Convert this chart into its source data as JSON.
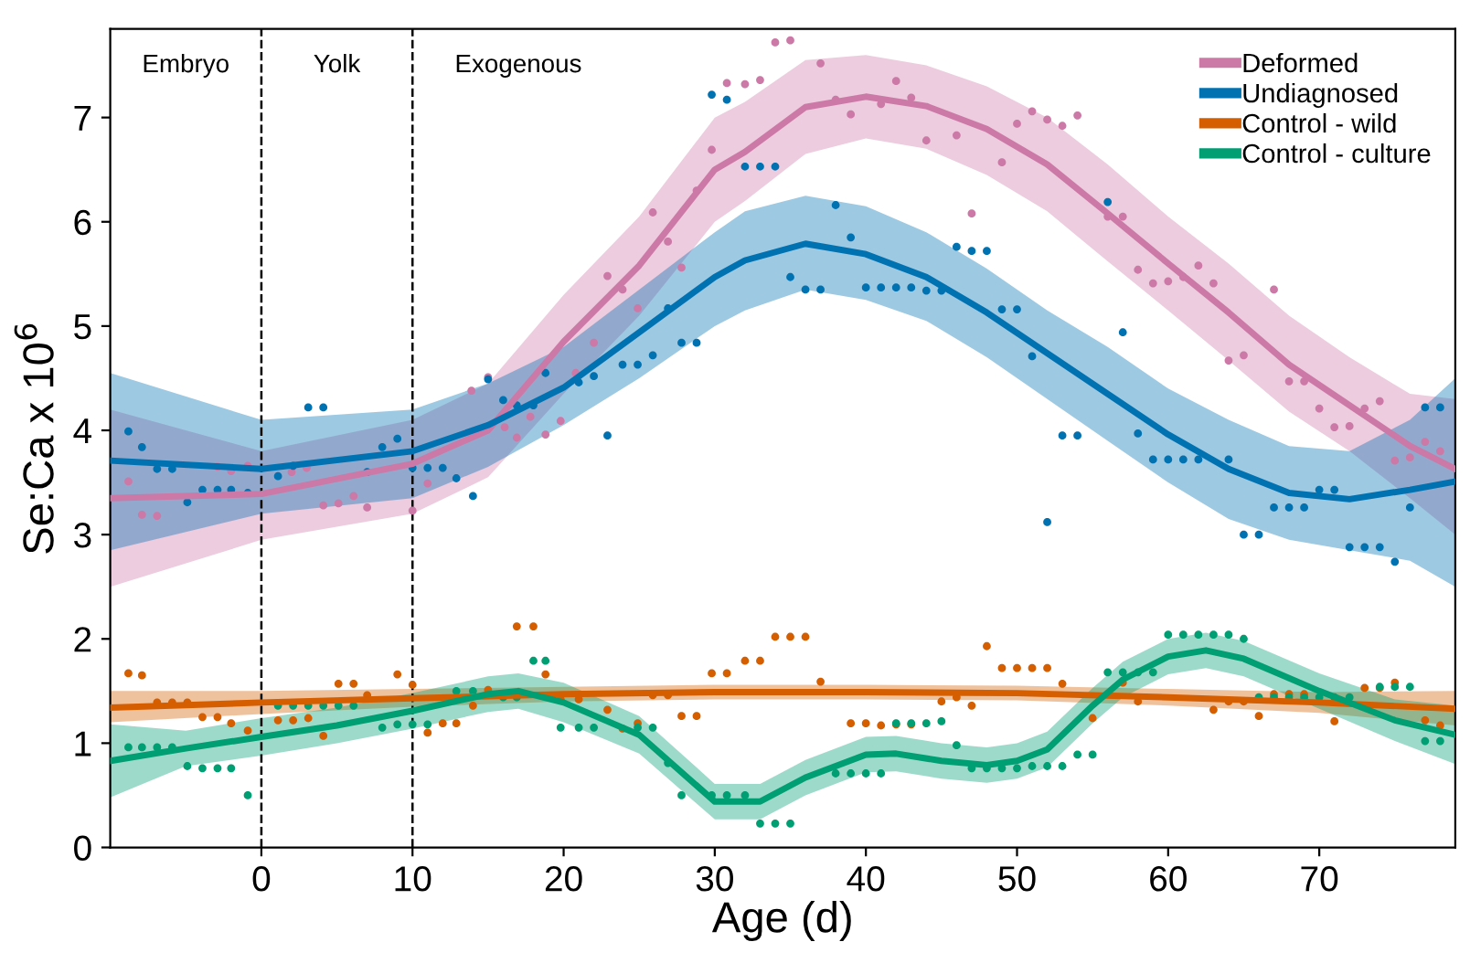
{
  "chart_data": {
    "type": "line",
    "xlabel": "Age (d)",
    "ylabel": "Se:Ca x 10$^{6}$",
    "xlim": [
      -10,
      79
    ],
    "ylim": [
      0,
      7.85
    ],
    "xticks": [
      0,
      10,
      20,
      30,
      40,
      50,
      60,
      70
    ],
    "yticks": [
      0,
      1,
      2,
      3,
      4,
      5,
      6,
      7
    ],
    "grid": false,
    "legend": "top right",
    "ref_lines": [
      {
        "axis": "x",
        "value": 0,
        "line_style": "dashed",
        "color": "#000000"
      },
      {
        "axis": "x",
        "value": 10,
        "line_style": "dashed",
        "color": "#000000"
      }
    ],
    "annotations": [
      "Embryo",
      "Yolk",
      "Exogenous"
    ],
    "series": [
      {
        "type": "scatter",
        "marker": "circle",
        "color": "#cc79a7",
        "x": [
          -8.8,
          -7.9,
          -6.9,
          -2.9,
          -2,
          -0.9,
          2,
          3,
          4.1,
          5.1,
          6.1,
          7,
          10,
          11,
          13.9,
          15,
          16.1,
          16.9,
          17.8,
          18.8,
          19.8,
          20.8,
          22,
          22.9,
          23.9,
          24.9,
          25.9,
          26.9,
          27.8,
          28.8,
          29.8,
          30.8,
          32,
          33,
          34,
          35,
          37,
          38,
          39,
          41,
          42,
          43,
          44,
          46,
          47,
          49,
          50,
          51,
          52,
          53,
          54,
          56,
          57,
          58,
          59,
          60,
          61,
          62,
          63,
          64,
          65,
          67,
          68,
          69,
          70,
          71,
          72,
          73,
          74,
          75,
          76,
          77,
          78
        ],
        "values": [
          3.51,
          3.19,
          3.18,
          3.65,
          3.61,
          3.66,
          3.6,
          3.64,
          3.28,
          3.3,
          3.37,
          3.26,
          3.23,
          3.49,
          4.38,
          4.51,
          4.03,
          3.93,
          4.13,
          3.96,
          4.09,
          4.55,
          4.84,
          5.48,
          5.35,
          5.17,
          6.09,
          5.81,
          5.56,
          6.3,
          6.69,
          7.33,
          7.32,
          7.36,
          7.72,
          7.74,
          7.52,
          7.17,
          7.03,
          7.13,
          7.35,
          7.19,
          6.78,
          6.83,
          6.08,
          6.57,
          6.94,
          7.06,
          6.98,
          6.92,
          7.02,
          6.05,
          6.05,
          5.54,
          5.41,
          5.43,
          5.47,
          5.58,
          5.41,
          4.67,
          4.72,
          5.35,
          4.47,
          4.47,
          4.21,
          4.03,
          4.04,
          4.21,
          4.28,
          3.71,
          3.74,
          3.89,
          3.8
        ]
      },
      {
        "type": "scatter",
        "marker": "circle",
        "color": "#0072b2",
        "x": [
          -8.8,
          -7.9,
          -6.9,
          -5.9,
          -4.9,
          -3.9,
          -2.9,
          -2,
          -0.9,
          1.1,
          2.1,
          3.1,
          4.1,
          7,
          8,
          9,
          10,
          11,
          12,
          12.9,
          14,
          15,
          16,
          16.9,
          18,
          18.8,
          21,
          22,
          22.9,
          23.9,
          24.9,
          25.9,
          26.9,
          27.8,
          28.8,
          29.8,
          30.8,
          32,
          33,
          34,
          35,
          36,
          37,
          38,
          39,
          40,
          41,
          42,
          43,
          44,
          45,
          46,
          47,
          48,
          49,
          50,
          51,
          52,
          53,
          54,
          56,
          57,
          58,
          59,
          60,
          61,
          62,
          64,
          65,
          66,
          67,
          68,
          69,
          70,
          71,
          72,
          73,
          74,
          75,
          76,
          77,
          78
        ],
        "values": [
          3.99,
          3.84,
          3.63,
          3.63,
          3.31,
          3.43,
          3.43,
          3.43,
          3.4,
          3.56,
          3.66,
          4.22,
          4.22,
          3.6,
          3.84,
          3.92,
          3.64,
          3.64,
          3.64,
          3.54,
          3.37,
          4.49,
          4.29,
          4.24,
          4.24,
          4.55,
          4.46,
          4.52,
          3.95,
          4.63,
          4.63,
          4.72,
          5.17,
          4.84,
          4.84,
          7.22,
          7.17,
          6.53,
          6.53,
          6.53,
          5.47,
          5.35,
          5.35,
          6.16,
          5.85,
          5.37,
          5.37,
          5.37,
          5.37,
          5.34,
          5.34,
          5.76,
          5.72,
          5.72,
          5.16,
          5.16,
          4.71,
          3.12,
          3.95,
          3.95,
          6.19,
          4.94,
          3.97,
          3.72,
          3.72,
          3.72,
          3.72,
          3.72,
          3.0,
          3.0,
          3.26,
          3.26,
          3.26,
          3.43,
          3.43,
          2.88,
          2.88,
          2.88,
          2.74,
          3.26,
          4.22,
          4.22
        ]
      },
      {
        "type": "scatter",
        "marker": "circle",
        "color": "#d55e00",
        "x": [
          -8.8,
          -7.9,
          -6.9,
          -5.9,
          -4.9,
          -3.9,
          -2.9,
          -2,
          -0.9,
          1.1,
          2.1,
          3.1,
          4.1,
          5.1,
          6.1,
          7,
          9,
          10,
          11,
          12,
          12.9,
          14,
          15,
          16.9,
          18,
          18.8,
          19.8,
          21,
          22.9,
          23.9,
          24.9,
          25.9,
          26.9,
          27.8,
          28.8,
          29.8,
          30.8,
          32,
          33,
          34,
          35,
          36,
          37,
          39,
          40,
          41,
          42,
          43,
          45,
          46,
          47,
          48,
          49,
          50,
          51,
          52,
          53,
          55,
          57,
          58,
          63,
          64,
          65,
          66,
          67,
          68,
          69,
          71,
          73,
          74,
          75,
          77,
          78
        ],
        "values": [
          1.67,
          1.65,
          1.39,
          1.39,
          1.39,
          1.25,
          1.25,
          1.19,
          1.12,
          1.22,
          1.22,
          1.24,
          1.07,
          1.57,
          1.57,
          1.46,
          1.66,
          1.56,
          1.1,
          1.19,
          1.19,
          1.36,
          1.51,
          2.12,
          2.12,
          1.66,
          1.42,
          1.42,
          1.32,
          1.14,
          1.19,
          1.46,
          1.46,
          1.26,
          1.26,
          1.67,
          1.67,
          1.79,
          1.79,
          2.02,
          2.02,
          2.02,
          1.59,
          1.19,
          1.19,
          1.17,
          1.18,
          1.18,
          1.4,
          1.44,
          1.36,
          1.93,
          1.72,
          1.72,
          1.72,
          1.72,
          1.57,
          1.24,
          1.58,
          1.4,
          1.32,
          1.4,
          1.4,
          1.26,
          1.47,
          1.47,
          1.47,
          1.21,
          1.53,
          1.53,
          1.58,
          1.22,
          1.17
        ]
      },
      {
        "type": "scatter",
        "marker": "circle",
        "color": "#009e73",
        "x": [
          -8.8,
          -7.9,
          -6.9,
          -5.9,
          -4.9,
          -3.9,
          -2.9,
          -2,
          -0.9,
          1.1,
          2.1,
          3.1,
          4.1,
          5.1,
          6.1,
          8,
          9,
          10,
          11,
          12.9,
          14,
          16,
          16.9,
          18,
          18.8,
          19.8,
          21,
          22,
          24.9,
          25.9,
          26.9,
          27.8,
          29.8,
          30.8,
          32,
          33,
          34,
          35,
          38,
          39,
          40,
          41,
          42,
          43,
          44,
          45,
          46,
          47,
          48,
          49,
          50,
          51,
          52,
          53,
          54,
          55,
          56,
          57,
          58,
          59,
          60,
          61,
          62,
          63,
          64,
          65,
          66,
          67,
          68,
          69,
          70,
          71,
          72,
          74,
          75,
          76,
          77,
          78
        ],
        "values": [
          0.96,
          0.96,
          0.96,
          0.96,
          0.78,
          0.76,
          0.76,
          0.76,
          0.5,
          1.36,
          1.36,
          1.36,
          1.36,
          1.36,
          1.36,
          1.15,
          1.18,
          1.18,
          1.18,
          1.5,
          1.5,
          1.44,
          1.44,
          1.79,
          1.79,
          1.15,
          1.15,
          1.15,
          1.15,
          1.15,
          0.81,
          0.5,
          0.5,
          0.5,
          0.5,
          0.23,
          0.23,
          0.23,
          0.71,
          0.71,
          0.71,
          0.71,
          1.19,
          1.19,
          1.19,
          1.21,
          0.98,
          0.76,
          0.76,
          0.76,
          0.76,
          0.78,
          0.78,
          0.78,
          0.89,
          0.89,
          1.68,
          1.68,
          1.68,
          1.68,
          2.04,
          2.04,
          2.04,
          2.04,
          2.04,
          2.0,
          1.44,
          1.44,
          1.44,
          1.44,
          1.44,
          1.44,
          1.44,
          1.54,
          1.54,
          1.54,
          1.02,
          1.02
        ]
      },
      {
        "name": "Deformed",
        "color": "#cc79a7",
        "x": [
          -10,
          0,
          10,
          15,
          20,
          25,
          30,
          32,
          36,
          40,
          44,
          48,
          52,
          56,
          60,
          64,
          68,
          72,
          76,
          79
        ],
        "values": [
          3.35,
          3.39,
          3.68,
          4.0,
          4.85,
          5.58,
          6.5,
          6.67,
          7.1,
          7.2,
          7.11,
          6.89,
          6.55,
          6.08,
          5.6,
          5.13,
          4.63,
          4.24,
          3.85,
          3.63
        ],
        "lower": [
          2.5,
          2.95,
          3.2,
          3.55,
          4.35,
          5.1,
          6.0,
          6.2,
          6.65,
          6.8,
          6.7,
          6.45,
          6.1,
          5.62,
          5.15,
          4.67,
          4.18,
          3.8,
          3.35,
          3.0
        ],
        "upper": [
          4.2,
          3.8,
          4.1,
          4.45,
          5.3,
          6.05,
          7.0,
          7.15,
          7.55,
          7.6,
          7.5,
          7.3,
          7.0,
          6.55,
          6.05,
          5.6,
          5.1,
          4.7,
          4.35,
          4.3
        ]
      },
      {
        "name": "Undiagnosed",
        "color": "#0072b2",
        "x": [
          -10,
          0,
          10,
          15,
          20,
          25,
          30,
          32,
          36,
          40,
          44,
          48,
          52,
          56,
          60,
          64,
          68,
          72,
          76,
          79
        ],
        "values": [
          3.71,
          3.63,
          3.8,
          4.05,
          4.41,
          4.94,
          5.47,
          5.63,
          5.79,
          5.69,
          5.47,
          5.13,
          4.74,
          4.35,
          3.96,
          3.63,
          3.4,
          3.34,
          3.43,
          3.51
        ],
        "lower": [
          2.85,
          3.2,
          3.35,
          3.65,
          4.05,
          4.5,
          5.0,
          5.15,
          5.35,
          5.25,
          5.05,
          4.7,
          4.3,
          3.9,
          3.5,
          3.15,
          2.95,
          2.85,
          2.75,
          2.5
        ],
        "upper": [
          4.55,
          4.1,
          4.2,
          4.45,
          4.8,
          5.35,
          5.9,
          6.1,
          6.25,
          6.15,
          5.9,
          5.55,
          5.15,
          4.8,
          4.4,
          4.1,
          3.85,
          3.8,
          4.1,
          4.5
        ]
      },
      {
        "name": "Control - wild",
        "color": "#d55e00",
        "x": [
          -10,
          0,
          10,
          20,
          30,
          40,
          50,
          60,
          70,
          79
        ],
        "values": [
          1.34,
          1.39,
          1.43,
          1.47,
          1.49,
          1.49,
          1.48,
          1.44,
          1.39,
          1.33
        ],
        "lower": [
          1.2,
          1.28,
          1.35,
          1.4,
          1.42,
          1.42,
          1.41,
          1.36,
          1.29,
          1.17
        ],
        "upper": [
          1.5,
          1.5,
          1.52,
          1.54,
          1.56,
          1.56,
          1.55,
          1.52,
          1.49,
          1.5
        ]
      },
      {
        "name": "Control - culture",
        "color": "#009e73",
        "x": [
          -10,
          -5,
          0,
          5,
          10,
          15,
          17,
          20,
          25,
          30,
          33,
          36,
          40,
          42,
          45,
          48,
          50,
          52,
          55,
          57,
          60,
          62.5,
          65,
          70,
          75,
          79
        ],
        "values": [
          0.83,
          0.95,
          1.06,
          1.17,
          1.31,
          1.47,
          1.5,
          1.39,
          1.08,
          0.44,
          0.44,
          0.67,
          0.89,
          0.9,
          0.83,
          0.79,
          0.83,
          0.94,
          1.36,
          1.61,
          1.83,
          1.89,
          1.81,
          1.5,
          1.22,
          1.08
        ],
        "lower": [
          0.48,
          0.78,
          0.88,
          1.0,
          1.14,
          1.3,
          1.33,
          1.2,
          0.9,
          0.27,
          0.27,
          0.5,
          0.72,
          0.73,
          0.66,
          0.62,
          0.66,
          0.77,
          1.19,
          1.44,
          1.66,
          1.72,
          1.64,
          1.33,
          1.02,
          0.8
        ],
        "upper": [
          1.18,
          1.12,
          1.24,
          1.34,
          1.48,
          1.64,
          1.67,
          1.58,
          1.26,
          0.61,
          0.61,
          0.84,
          1.06,
          1.07,
          1.0,
          0.96,
          1.0,
          1.11,
          1.53,
          1.78,
          2.0,
          2.06,
          1.98,
          1.67,
          1.42,
          1.36
        ]
      }
    ]
  }
}
